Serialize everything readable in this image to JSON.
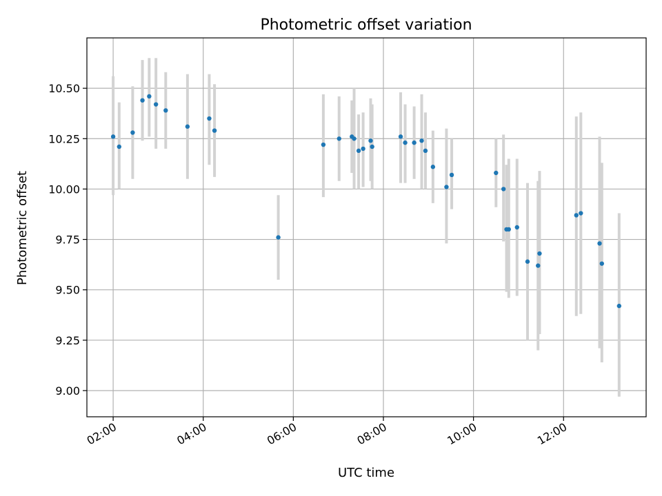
{
  "chart_data": {
    "type": "scatter",
    "title": "Photometric offset variation",
    "xlabel": "UTC time",
    "ylabel": "Photometric offset",
    "x_range": [
      "01:25",
      "13:50"
    ],
    "x_ticks": [
      "02:00",
      "04:00",
      "06:00",
      "08:00",
      "10:00",
      "12:00"
    ],
    "ylim": [
      8.87,
      10.75
    ],
    "y_ticks": [
      "9.00",
      "9.25",
      "9.50",
      "9.75",
      "10.00",
      "10.25",
      "10.50"
    ],
    "grid": true,
    "colors": {
      "point": "#1f77b4",
      "errorbar": "#d3d3d3",
      "grid": "#b0b0b0"
    },
    "points": [
      {
        "x": "02:00",
        "y": 10.26,
        "err_low": 9.97,
        "err_high": 10.56
      },
      {
        "x": "02:08",
        "y": 10.21,
        "err_low": 10.0,
        "err_high": 10.43
      },
      {
        "x": "02:26",
        "y": 10.28,
        "err_low": 10.05,
        "err_high": 10.51
      },
      {
        "x": "02:39",
        "y": 10.44,
        "err_low": 10.24,
        "err_high": 10.64
      },
      {
        "x": "02:48",
        "y": 10.46,
        "err_low": 10.26,
        "err_high": 10.65
      },
      {
        "x": "02:57",
        "y": 10.42,
        "err_low": 10.2,
        "err_high": 10.65
      },
      {
        "x": "03:10",
        "y": 10.39,
        "err_low": 10.2,
        "err_high": 10.58
      },
      {
        "x": "03:39",
        "y": 10.31,
        "err_low": 10.05,
        "err_high": 10.57
      },
      {
        "x": "04:08",
        "y": 10.35,
        "err_low": 10.12,
        "err_high": 10.57
      },
      {
        "x": "04:15",
        "y": 10.29,
        "err_low": 10.06,
        "err_high": 10.52
      },
      {
        "x": "05:40",
        "y": 9.76,
        "err_low": 9.55,
        "err_high": 9.97
      },
      {
        "x": "06:40",
        "y": 10.22,
        "err_low": 9.96,
        "err_high": 10.47
      },
      {
        "x": "07:01",
        "y": 10.25,
        "err_low": 10.04,
        "err_high": 10.46
      },
      {
        "x": "07:18",
        "y": 10.26,
        "err_low": 10.08,
        "err_high": 10.44
      },
      {
        "x": "07:21",
        "y": 10.25,
        "err_low": 10.0,
        "err_high": 10.5
      },
      {
        "x": "07:27",
        "y": 10.19,
        "err_low": 10.0,
        "err_high": 10.37
      },
      {
        "x": "07:33",
        "y": 10.2,
        "err_low": 10.01,
        "err_high": 10.38
      },
      {
        "x": "07:43",
        "y": 10.24,
        "err_low": 10.04,
        "err_high": 10.45
      },
      {
        "x": "07:45",
        "y": 10.21,
        "err_low": 10.0,
        "err_high": 10.42
      },
      {
        "x": "08:23",
        "y": 10.26,
        "err_low": 10.03,
        "err_high": 10.48
      },
      {
        "x": "08:29",
        "y": 10.23,
        "err_low": 10.03,
        "err_high": 10.42
      },
      {
        "x": "08:41",
        "y": 10.23,
        "err_low": 10.05,
        "err_high": 10.41
      },
      {
        "x": "08:51",
        "y": 10.24,
        "err_low": 10.0,
        "err_high": 10.47
      },
      {
        "x": "08:56",
        "y": 10.19,
        "err_low": 10.0,
        "err_high": 10.38
      },
      {
        "x": "09:06",
        "y": 10.11,
        "err_low": 9.93,
        "err_high": 10.29
      },
      {
        "x": "09:24",
        "y": 10.01,
        "err_low": 9.73,
        "err_high": 10.3
      },
      {
        "x": "09:31",
        "y": 10.07,
        "err_low": 9.9,
        "err_high": 10.25
      },
      {
        "x": "10:30",
        "y": 10.08,
        "err_low": 9.91,
        "err_high": 10.25
      },
      {
        "x": "10:40",
        "y": 10.0,
        "err_low": 9.74,
        "err_high": 10.27
      },
      {
        "x": "10:44",
        "y": 9.8,
        "err_low": 9.49,
        "err_high": 10.12
      },
      {
        "x": "10:47",
        "y": 9.8,
        "err_low": 9.46,
        "err_high": 10.15
      },
      {
        "x": "10:58",
        "y": 9.81,
        "err_low": 9.47,
        "err_high": 10.15
      },
      {
        "x": "11:12",
        "y": 9.64,
        "err_low": 9.25,
        "err_high": 10.03
      },
      {
        "x": "11:26",
        "y": 9.62,
        "err_low": 9.2,
        "err_high": 10.04
      },
      {
        "x": "11:28",
        "y": 9.68,
        "err_low": 9.28,
        "err_high": 10.09
      },
      {
        "x": "12:17",
        "y": 9.87,
        "err_low": 9.37,
        "err_high": 10.36
      },
      {
        "x": "12:23",
        "y": 9.88,
        "err_low": 9.38,
        "err_high": 10.38
      },
      {
        "x": "12:48",
        "y": 9.73,
        "err_low": 9.21,
        "err_high": 10.26
      },
      {
        "x": "12:51",
        "y": 9.63,
        "err_low": 9.14,
        "err_high": 10.13
      },
      {
        "x": "13:14",
        "y": 9.42,
        "err_low": 8.97,
        "err_high": 9.88
      }
    ]
  }
}
